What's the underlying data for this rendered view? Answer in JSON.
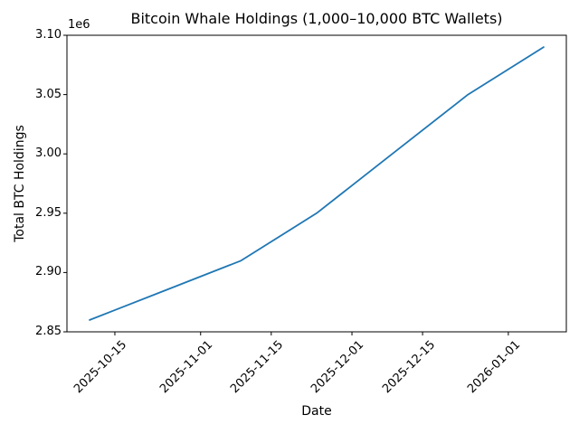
{
  "chart_data": {
    "type": "line",
    "title": "Bitcoin Whale Holdings (1,000–10,000 BTC Wallets)",
    "xlabel": "Date",
    "ylabel": "Total BTC Holdings",
    "y_offset_label": "1e6",
    "x": [
      "2025-10-10",
      "2025-10-25",
      "2025-11-09",
      "2025-11-24",
      "2025-12-09",
      "2025-12-24",
      "2026-01-08"
    ],
    "series": [
      {
        "name": "Total BTC Holdings",
        "color": "#1f77b4",
        "values": [
          2860000,
          2885000,
          2910000,
          2950000,
          3000000,
          3050000,
          3090000
        ]
      }
    ],
    "ylim": [
      2850000,
      3100000
    ],
    "x_margin_frac": 0.05,
    "y_ticks": [
      {
        "value": 2850000,
        "label": "2.85"
      },
      {
        "value": 2900000,
        "label": "2.90"
      },
      {
        "value": 2950000,
        "label": "2.95"
      },
      {
        "value": 3000000,
        "label": "3.00"
      },
      {
        "value": 3050000,
        "label": "3.05"
      },
      {
        "value": 3100000,
        "label": "3.10"
      }
    ],
    "x_ticks": [
      {
        "date": "2025-10-15",
        "label": "2025-10-15"
      },
      {
        "date": "2025-11-01",
        "label": "2025-11-01"
      },
      {
        "date": "2025-11-15",
        "label": "2025-11-15"
      },
      {
        "date": "2025-12-01",
        "label": "2025-12-01"
      },
      {
        "date": "2025-12-15",
        "label": "2025-12-15"
      },
      {
        "date": "2026-01-01",
        "label": "2026-01-01"
      }
    ],
    "x_tick_rotation_deg": 45,
    "grid": false,
    "legend": false,
    "background": "#ffffff",
    "axes_color": "#000000"
  }
}
